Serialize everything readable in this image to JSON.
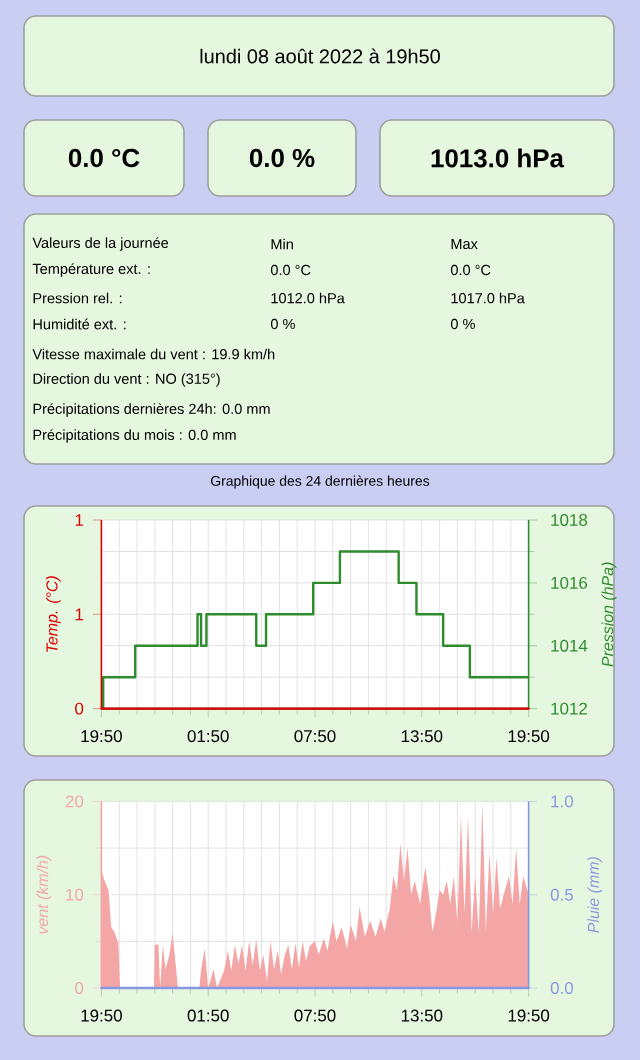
{
  "chart_data": [
    {
      "type": "other",
      "title": "lundi 08 août 2022 à 19h50",
      "annotations": [
        "0.0 °C",
        "0.0 %",
        "1013.0 hPa",
        "Valeurs de la journée",
        "Min",
        "Max",
        "Température ext. :",
        "0.0 °C",
        "0.0 °C",
        "Pression rel. :",
        "1012.0 hPa",
        "1017.0 hPa",
        "Humidité ext. :",
        "0 %",
        "0 %",
        "Vitesse maximale du vent : 19.9 km/h",
        "Direction du vent : NO (315°)",
        "Précipitations dernières 24h: 0.0 mm",
        "Précipitations du mois : 0.0 mm",
        "Graphique des 24 dernières heures"
      ]
    },
    {
      "type": "step",
      "xlim": [
        "2022-08-07T19:50",
        "2022-08-08T19:50"
      ],
      "xticks": [
        {
          "value": "2022-08-07T19:50",
          "label": "19:50"
        },
        {
          "value": "2022-08-08T01:50",
          "label": "01:50"
        },
        {
          "value": "2022-08-08T07:50",
          "label": "07:50"
        },
        {
          "value": "2022-08-08T13:50",
          "label": "13:50"
        },
        {
          "value": "2022-08-08T19:50",
          "label": "19:50"
        }
      ],
      "ylim": [
        0,
        1
      ],
      "yticks": [
        0,
        {
          "value": 0.5,
          "label": "1"
        },
        1
      ],
      "ylabel": "Temp. (°C)",
      "y2lim": [
        1012,
        1018
      ],
      "y2ticks": [
        1012,
        1014,
        1016,
        1018
      ],
      "y2label": "Pression (hPa)",
      "grid": true,
      "series": [
        {
          "type": "line",
          "color": "#dd0000",
          "x": [
            "2022-08-07T19:50",
            "2022-08-08T19:50"
          ],
          "values": [
            0,
            0
          ]
        },
        {
          "color": "#2e8b2e",
          "axis": "y2",
          "x": [
            "2022-08-07T19:50",
            "2022-08-07T19:56",
            "2022-08-07T21:44",
            "2022-08-08T01:14",
            "2022-08-08T01:26",
            "2022-08-08T01:44",
            "2022-08-08T04:32",
            "2022-08-08T05:05",
            "2022-08-08T07:44",
            "2022-08-08T09:14",
            "2022-08-08T12:32",
            "2022-08-08T13:32",
            "2022-08-08T15:02",
            "2022-08-08T16:32",
            "2022-08-08T19:50"
          ],
          "values": [
            1012,
            1013,
            1014,
            1015,
            1014,
            1015,
            1014,
            1015,
            1016,
            1017,
            1016,
            1015,
            1014,
            1013,
            1013
          ]
        }
      ]
    },
    {
      "type": "area",
      "xlim": [
        "2022-08-07T19:50",
        "2022-08-08T19:50"
      ],
      "xticks": [
        {
          "value": "2022-08-07T19:50",
          "label": "19:50"
        },
        {
          "value": "2022-08-08T01:50",
          "label": "01:50"
        },
        {
          "value": "2022-08-08T07:50",
          "label": "07:50"
        },
        {
          "value": "2022-08-08T13:50",
          "label": "13:50"
        },
        {
          "value": "2022-08-08T19:50",
          "label": "19:50"
        }
      ],
      "ylim": [
        0,
        20
      ],
      "yticks": [
        0,
        10,
        20
      ],
      "ylabel": "vent (km/h)",
      "y2lim": [
        0,
        1
      ],
      "y2ticks": [
        {
          "value": 0,
          "label": "0.0"
        },
        0.5,
        {
          "value": 1,
          "label": "1.0"
        }
      ],
      "y2label": "Pluie (mm)",
      "grid": true,
      "series": [
        {
          "color": "#f4a6a6",
          "x": [
            "2022-08-07T19:50",
            "2022-08-07T20:02",
            "2022-08-07T20:14",
            "2022-08-07T20:23",
            "2022-08-07T20:35",
            "2022-08-07T20:47",
            "2022-08-07T20:53",
            "2022-08-07T22:47",
            "2022-08-07T22:50",
            "2022-08-07T23:02",
            "2022-08-07T23:08",
            "2022-08-07T23:17",
            "2022-08-07T23:26",
            "2022-08-07T23:38",
            "2022-08-07T23:50",
            "2022-08-08T00:02",
            "2022-08-08T00:08",
            "2022-08-08T01:20",
            "2022-08-08T01:26",
            "2022-08-08T01:38",
            "2022-08-08T01:50",
            "2022-08-08T02:08",
            "2022-08-08T02:20",
            "2022-08-08T02:44",
            "2022-08-08T02:56",
            "2022-08-08T03:08",
            "2022-08-08T03:20",
            "2022-08-08T03:32",
            "2022-08-08T03:44",
            "2022-08-08T03:56",
            "2022-08-08T04:08",
            "2022-08-08T04:20",
            "2022-08-08T04:32",
            "2022-08-08T04:44",
            "2022-08-08T04:56",
            "2022-08-08T05:08",
            "2022-08-08T05:20",
            "2022-08-08T05:32",
            "2022-08-08T05:44",
            "2022-08-08T05:56",
            "2022-08-08T06:08",
            "2022-08-08T06:20",
            "2022-08-08T06:32",
            "2022-08-08T06:44",
            "2022-08-08T06:56",
            "2022-08-08T07:08",
            "2022-08-08T07:20",
            "2022-08-08T07:32",
            "2022-08-08T07:50",
            "2022-08-08T08:02",
            "2022-08-08T08:20",
            "2022-08-08T08:32",
            "2022-08-08T08:50",
            "2022-08-08T09:02",
            "2022-08-08T09:20",
            "2022-08-08T09:38",
            "2022-08-08T09:50",
            "2022-08-08T10:08",
            "2022-08-08T10:20",
            "2022-08-08T10:38",
            "2022-08-08T10:56",
            "2022-08-08T11:14",
            "2022-08-08T11:32",
            "2022-08-08T11:44",
            "2022-08-08T12:02",
            "2022-08-08T12:14",
            "2022-08-08T12:26",
            "2022-08-08T12:38",
            "2022-08-08T12:50",
            "2022-08-08T13:02",
            "2022-08-08T13:14",
            "2022-08-08T13:26",
            "2022-08-08T13:44",
            "2022-08-08T14:02",
            "2022-08-08T14:14",
            "2022-08-08T14:26",
            "2022-08-08T14:38",
            "2022-08-08T14:50",
            "2022-08-08T15:02",
            "2022-08-08T15:14",
            "2022-08-08T15:26",
            "2022-08-08T15:38",
            "2022-08-08T15:50",
            "2022-08-08T16:02",
            "2022-08-08T16:14",
            "2022-08-08T16:26",
            "2022-08-08T16:38",
            "2022-08-08T16:50",
            "2022-08-08T17:02",
            "2022-08-08T17:14",
            "2022-08-08T17:26",
            "2022-08-08T17:38",
            "2022-08-08T17:50",
            "2022-08-08T18:02",
            "2022-08-08T18:14",
            "2022-08-08T18:26",
            "2022-08-08T18:44",
            "2022-08-08T18:56",
            "2022-08-08T19:08",
            "2022-08-08T19:20",
            "2022-08-08T19:32",
            "2022-08-08T19:50"
          ],
          "values": [
            12.5,
            11.4,
            10.5,
            6.6,
            5.9,
            4.8,
            0,
            0,
            4.6,
            4.7,
            0,
            4.6,
            2.0,
            3.4,
            5.9,
            2.0,
            0,
            0,
            1.9,
            4.2,
            0,
            2.0,
            0,
            1.9,
            4.0,
            1.9,
            4.6,
            2.6,
            4.6,
            1.9,
            5.0,
            2.5,
            5.2,
            1.9,
            3.6,
            0.7,
            5.0,
            2.0,
            4.0,
            1.5,
            3.5,
            4.6,
            2.0,
            4.8,
            2.2,
            5.0,
            2.9,
            4.5,
            5.0,
            3.6,
            5.3,
            4.0,
            7.2,
            5.0,
            6.5,
            4.2,
            6.8,
            5.0,
            8.7,
            5.5,
            7.2,
            5.5,
            7.5,
            6.0,
            8.5,
            12.0,
            10.5,
            15.5,
            11.5,
            15.0,
            10.0,
            11.5,
            9.0,
            13.0,
            10.0,
            6.0,
            8.0,
            10.5,
            10.0,
            11.5,
            9.0,
            12.0,
            7.0,
            18.5,
            8.0,
            18.5,
            6.0,
            12.0,
            5.8,
            19.9,
            6.0,
            14.5,
            8.0,
            14.0,
            8.5,
            10.0,
            12.0,
            9.0,
            15.0,
            9.0,
            12.0,
            10.0
          ]
        },
        {
          "type": "line",
          "color": "#8898e0",
          "axis": "y2",
          "x": [
            "2022-08-07T19:50",
            "2022-08-08T19:50"
          ],
          "values": [
            0,
            0
          ]
        }
      ]
    }
  ]
}
